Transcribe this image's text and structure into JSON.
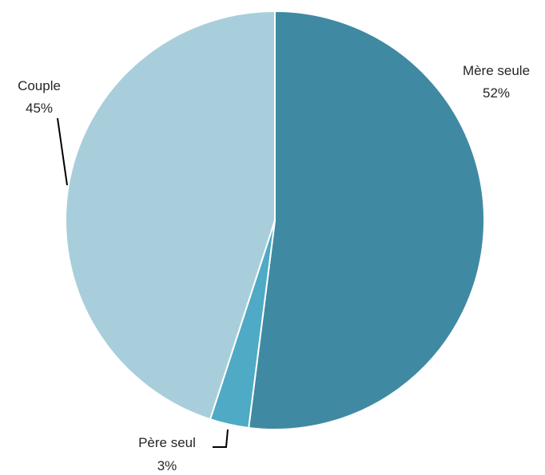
{
  "chart_data": {
    "type": "pie",
    "slices": [
      {
        "name": "Mère seule",
        "value": 52,
        "label": "52%",
        "color": "#3f8aa2"
      },
      {
        "name": "Père seul",
        "value": 3,
        "label": "3%",
        "color": "#4eaac5"
      },
      {
        "name": "Couple",
        "value": 45,
        "label": "45%",
        "color": "#a9cedb"
      }
    ],
    "start_angle": "12 o'clock",
    "direction": "clockwise",
    "slice_border_color": "#ffffff",
    "legend": "none",
    "title": ""
  }
}
